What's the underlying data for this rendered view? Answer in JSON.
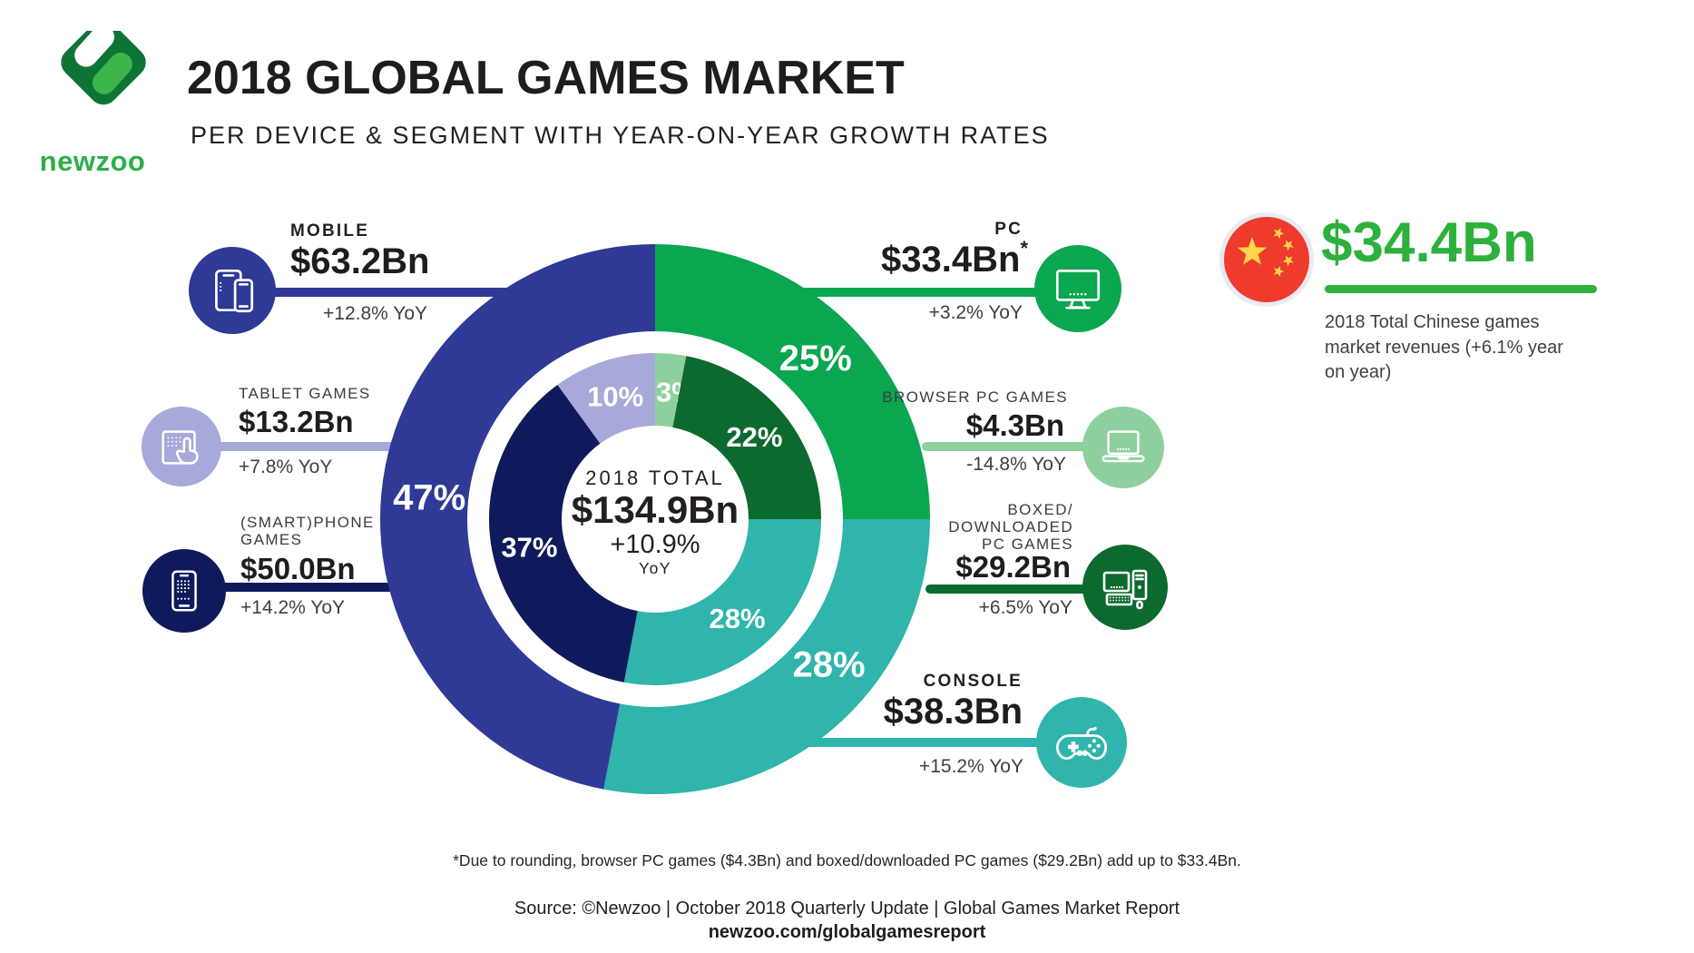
{
  "header": {
    "brand": "newzoo",
    "title": "2018 GLOBAL GAMES MARKET",
    "subtitle": "PER DEVICE & SEGMENT WITH YEAR-ON-YEAR GROWTH RATES"
  },
  "chart_data": {
    "type": "donut",
    "title": "2018 Global Games Market per device & segment",
    "total": {
      "label": "2018 TOTAL",
      "value": "$134.9Bn",
      "growth": "+10.9%",
      "growth_unit": "YoY"
    },
    "outer_ring": {
      "description": "Share per device",
      "segments": [
        {
          "name": "PC",
          "value_pct": 25,
          "label": "25%",
          "color": "#0ba650"
        },
        {
          "name": "Console",
          "value_pct": 28,
          "label": "28%",
          "color": "#2fb5ab"
        },
        {
          "name": "Mobile",
          "value_pct": 47,
          "label": "47%",
          "color": "#2e3a96"
        }
      ]
    },
    "inner_ring": {
      "description": "Share per segment",
      "segments": [
        {
          "name": "Browser PC Games",
          "value_pct": 3,
          "label": "3%",
          "color": "#8ed09d"
        },
        {
          "name": "Boxed/Downloaded PC Games",
          "value_pct": 22,
          "label": "22%",
          "color": "#0c6a2e"
        },
        {
          "name": "Console",
          "value_pct": 28,
          "label": "28%",
          "color": "#2fb5ab"
        },
        {
          "name": "(Smart)phone Games",
          "value_pct": 37,
          "label": "37%",
          "color": "#0f1a5d"
        },
        {
          "name": "Tablet Games",
          "value_pct": 10,
          "label": "10%",
          "color": "#a7a9da"
        }
      ]
    }
  },
  "callouts": {
    "mobile": {
      "label": "MOBILE",
      "value": "$63.2Bn",
      "yoy": "+12.8% YoY",
      "color": "#2e3a96",
      "icon": "smartphones-icon"
    },
    "pc": {
      "label": "PC",
      "value": "$33.4Bn",
      "asterisk": "*",
      "yoy": "+3.2% YoY",
      "color": "#0ba650",
      "icon": "desktop-monitor-icon"
    },
    "tablet": {
      "label": "TABLET GAMES",
      "value": "$13.2Bn",
      "yoy": "+7.8% YoY",
      "color": "#a7a9da",
      "icon": "tablet-hand-icon"
    },
    "smartphone": {
      "label": "(SMART)PHONE\nGAMES",
      "value": "$50.0Bn",
      "yoy": "+14.2% YoY",
      "color": "#0f1a5d",
      "icon": "smartphone-icon"
    },
    "browser": {
      "label": "BROWSER PC GAMES",
      "value": "$4.3Bn",
      "yoy": "-14.8% YoY",
      "color": "#8ed09d",
      "icon": "laptop-icon"
    },
    "boxed": {
      "label": "BOXED/\nDOWNLOADED\nPC GAMES",
      "value": "$29.2Bn",
      "yoy": "+6.5% YoY",
      "color": "#0c6a2e",
      "icon": "desktop-pc-icon"
    },
    "console": {
      "label": "CONSOLE",
      "value": "$38.3Bn",
      "yoy": "+15.2% YoY",
      "color": "#2fb5ab",
      "icon": "gamepad-icon"
    }
  },
  "china": {
    "value": "$34.4Bn",
    "description": "2018 Total Chinese games market revenues (+6.1% year on year)",
    "accent_color": "#2eb13c",
    "flag_red": "#ee3b2c",
    "flag_yellow": "#fdd64b"
  },
  "footer": {
    "footnote": "*Due to rounding, browser PC games ($4.3Bn) and boxed/downloaded PC games ($29.2Bn) add up to $33.4Bn.",
    "source": "Source: ©Newzoo | October 2018 Quarterly Update | Global Games Market Report",
    "url": "newzoo.com/globalgamesreport"
  }
}
